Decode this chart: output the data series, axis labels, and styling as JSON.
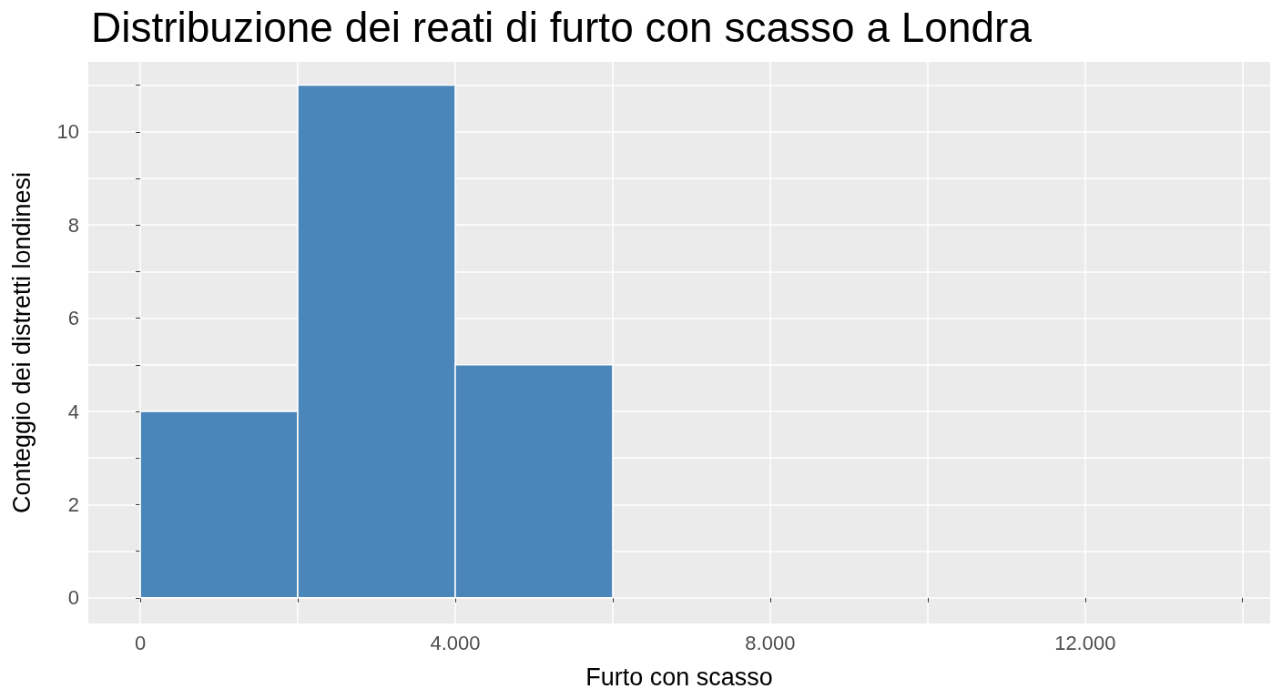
{
  "chart_data": {
    "type": "histogram",
    "title": "Distribuzione dei reati di furto con scasso a Londra",
    "xlabel": "Furto con scasso",
    "ylabel": "Conteggio dei distretti londinesi",
    "bins": [
      0,
      2000,
      4000,
      6000
    ],
    "values": [
      4,
      11,
      5
    ],
    "color": "#4a86b9",
    "xlim": [
      -660,
      14350
    ],
    "ylim": [
      -0.55,
      11.5
    ],
    "xticks": [
      0,
      {
        "value": 2000,
        "label": null
      },
      {
        "value": 4000,
        "label": "4.000"
      },
      {
        "value": 6000,
        "label": null
      },
      {
        "value": 8000,
        "label": "8.000"
      },
      {
        "value": 10000,
        "label": null
      },
      {
        "value": 12000,
        "label": "12.000"
      },
      {
        "value": 14000,
        "label": null
      }
    ],
    "yticks": [
      0,
      {
        "value": 1,
        "label": null
      },
      2,
      {
        "value": 3,
        "label": null
      },
      4,
      {
        "value": 5,
        "label": null
      },
      6,
      {
        "value": 7,
        "label": null
      },
      8,
      {
        "value": 9,
        "label": null
      },
      10,
      {
        "value": 11,
        "label": null
      }
    ],
    "grid": true
  }
}
